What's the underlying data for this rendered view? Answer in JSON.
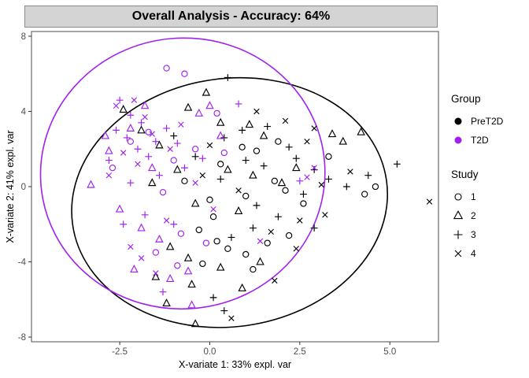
{
  "title": "Overall Analysis - Accuracy: 64%",
  "axes": {
    "x": {
      "label": "X-variate 1: 33% expl. var"
    },
    "y": {
      "label": "X-variate 2: 41% expl. var"
    }
  },
  "colors": {
    "PreT2D": "#000000",
    "T2D": "#A020F0"
  },
  "legend": {
    "group": {
      "title": "Group",
      "items": [
        {
          "label": "PreT2D",
          "color": "#000000"
        },
        {
          "label": "T2D",
          "color": "#A020F0"
        }
      ]
    },
    "study": {
      "title": "Study",
      "items": [
        {
          "label": "1",
          "shape": "circle"
        },
        {
          "label": "2",
          "shape": "triangle"
        },
        {
          "label": "3",
          "shape": "plus"
        },
        {
          "label": "4",
          "shape": "x"
        }
      ]
    }
  },
  "chart_data": {
    "type": "scatter",
    "title": "Overall Analysis - Accuracy: 64%",
    "xlabel": "X-variate 1: 33% expl. var",
    "ylabel": "X-variate 2: 41% expl. var",
    "xlim": [
      -4.95,
      6.35
    ],
    "ylim": [
      -8.25,
      8.25
    ],
    "x_ticks": [
      {
        "v": -2.5,
        "label": "-2.5"
      },
      {
        "v": 0,
        "label": "0.0"
      },
      {
        "v": 2.5,
        "label": "2.5"
      },
      {
        "v": 5,
        "label": "5.0"
      }
    ],
    "y_ticks": [
      {
        "v": -8,
        "label": "-8"
      },
      {
        "v": -4,
        "label": "-4"
      },
      {
        "v": 0,
        "label": "0"
      },
      {
        "v": 4,
        "label": "4"
      },
      {
        "v": 8,
        "label": "8"
      }
    ],
    "grid": false,
    "legend_position": "right",
    "shape_map": {
      "1": "circle",
      "2": "triangle",
      "3": "plus",
      "4": "x"
    },
    "ellipses": [
      {
        "group": "PreT2D",
        "cx": 0.55,
        "cy": -0.85,
        "rx": 4.4,
        "ry": 6.6,
        "angle": -8
      },
      {
        "group": "T2D",
        "cx": -0.75,
        "cy": 0.7,
        "rx": 3.95,
        "ry": 7.2,
        "angle": -5
      }
    ],
    "series": [
      {
        "group": "PreT2D",
        "study": 1,
        "shape": "circle",
        "points": [
          [
            0.9,
            2.1
          ],
          [
            1.3,
            1.9
          ],
          [
            0.3,
            1.2
          ],
          [
            1.8,
            0.3
          ],
          [
            2.1,
            -0.2
          ],
          [
            4.6,
            0.0
          ],
          [
            4.3,
            -0.4
          ],
          [
            1.0,
            -0.5
          ],
          [
            0.1,
            -1.6
          ],
          [
            -0.3,
            -2.3
          ],
          [
            0.5,
            -3.3
          ],
          [
            1.0,
            -3.6
          ],
          [
            -0.2,
            -4.1
          ],
          [
            1.6,
            -3.0
          ],
          [
            2.2,
            -2.6
          ],
          [
            -0.7,
            0.3
          ],
          [
            3.3,
            1.6
          ],
          [
            1.9,
            2.4
          ],
          [
            0.0,
            -0.7
          ],
          [
            2.6,
            -0.9
          ],
          [
            1.2,
            -4.4
          ],
          [
            0.2,
            -2.9
          ]
        ]
      },
      {
        "group": "PreT2D",
        "study": 2,
        "shape": "triangle",
        "points": [
          [
            -2.4,
            4.1
          ],
          [
            -1.9,
            3.0
          ],
          [
            -1.4,
            2.2
          ],
          [
            -0.6,
            4.2
          ],
          [
            0.3,
            3.4
          ],
          [
            1.1,
            3.3
          ],
          [
            1.5,
            2.7
          ],
          [
            3.4,
            2.8
          ],
          [
            3.7,
            2.4
          ],
          [
            4.2,
            2.9
          ],
          [
            0.5,
            0.9
          ],
          [
            1.2,
            0.6
          ],
          [
            -0.9,
            0.9
          ],
          [
            -1.6,
            0.2
          ],
          [
            -0.4,
            -0.9
          ],
          [
            0.8,
            -1.3
          ],
          [
            -1.1,
            -3.2
          ],
          [
            -0.6,
            -3.8
          ],
          [
            0.3,
            -4.3
          ],
          [
            1.4,
            -4.0
          ],
          [
            -1.5,
            -4.8
          ],
          [
            -0.5,
            -5.2
          ],
          [
            0.9,
            -5.4
          ],
          [
            -1.2,
            -6.2
          ],
          [
            -0.4,
            -7.3
          ],
          [
            2.0,
            0.2
          ],
          [
            2.4,
            1.0
          ],
          [
            -0.1,
            5.0
          ]
        ]
      },
      {
        "group": "PreT2D",
        "study": 3,
        "shape": "plus",
        "points": [
          [
            0.5,
            5.8
          ],
          [
            1.6,
            3.2
          ],
          [
            0.9,
            3.0
          ],
          [
            0.4,
            2.6
          ],
          [
            1.0,
            1.4
          ],
          [
            1.5,
            1.1
          ],
          [
            2.4,
            1.5
          ],
          [
            2.9,
            0.9
          ],
          [
            3.3,
            0.4
          ],
          [
            3.8,
            0.0
          ],
          [
            2.6,
            -0.4
          ],
          [
            5.2,
            1.2
          ],
          [
            0.3,
            0.4
          ],
          [
            -0.4,
            1.6
          ],
          [
            -1.0,
            2.7
          ],
          [
            1.9,
            -1.6
          ],
          [
            1.2,
            -2.2
          ],
          [
            0.6,
            -2.7
          ],
          [
            2.9,
            -2.2
          ],
          [
            0.1,
            -5.9
          ],
          [
            0.4,
            -6.6
          ],
          [
            1.3,
            -1.0
          ],
          [
            2.2,
            2.1
          ],
          [
            4.4,
            0.6
          ]
        ]
      },
      {
        "group": "PreT2D",
        "study": 4,
        "shape": "x",
        "points": [
          [
            2.1,
            3.5
          ],
          [
            2.7,
            2.4
          ],
          [
            3.9,
            0.8
          ],
          [
            6.1,
            -0.8
          ],
          [
            3.2,
            -1.5
          ],
          [
            2.4,
            -3.3
          ],
          [
            1.7,
            -2.4
          ],
          [
            0.8,
            -0.2
          ],
          [
            -0.2,
            0.6
          ],
          [
            1.3,
            4.0
          ],
          [
            2.9,
            3.1
          ],
          [
            0.6,
            -7.0
          ],
          [
            1.8,
            -5.0
          ],
          [
            3.1,
            0.1
          ],
          [
            0.0,
            2.2
          ],
          [
            2.5,
            -1.8
          ]
        ]
      },
      {
        "group": "T2D",
        "study": 1,
        "shape": "circle",
        "points": [
          [
            -1.2,
            6.3
          ],
          [
            -0.7,
            6.0
          ],
          [
            -1.7,
            2.9
          ],
          [
            -2.2,
            2.4
          ],
          [
            -1.0,
            1.4
          ],
          [
            -0.4,
            2.0
          ],
          [
            -1.3,
            -0.3
          ],
          [
            -0.8,
            -2.5
          ],
          [
            -1.5,
            -3.5
          ],
          [
            -0.9,
            -4.2
          ],
          [
            0.2,
            3.9
          ],
          [
            -2.7,
            1.0
          ],
          [
            0.4,
            1.8
          ],
          [
            -0.1,
            -3.0
          ]
        ]
      },
      {
        "group": "T2D",
        "study": 2,
        "shape": "triangle",
        "points": [
          [
            -3.3,
            0.1
          ],
          [
            -2.8,
            1.9
          ],
          [
            -2.2,
            3.1
          ],
          [
            -1.8,
            4.3
          ],
          [
            -0.3,
            3.9
          ],
          [
            0.0,
            4.3
          ],
          [
            -2.5,
            -1.2
          ],
          [
            -1.9,
            -2.2
          ],
          [
            -1.4,
            -2.8
          ],
          [
            -2.1,
            -4.4
          ],
          [
            -1.1,
            -4.9
          ],
          [
            -0.6,
            -4.5
          ],
          [
            -2.9,
            2.7
          ],
          [
            0.3,
            2.7
          ],
          [
            -1.6,
            1.0
          ],
          [
            -0.5,
            -6.3
          ]
        ]
      },
      {
        "group": "T2D",
        "study": 3,
        "shape": "plus",
        "points": [
          [
            -2.5,
            4.6
          ],
          [
            -2.2,
            3.8
          ],
          [
            -1.9,
            3.4
          ],
          [
            -2.6,
            3.0
          ],
          [
            -2.3,
            2.6
          ],
          [
            -2.0,
            2.0
          ],
          [
            -1.7,
            1.6
          ],
          [
            -2.8,
            1.4
          ],
          [
            -1.5,
            2.4
          ],
          [
            -1.2,
            3.1
          ],
          [
            -0.9,
            2.3
          ],
          [
            -1.4,
            0.6
          ],
          [
            -2.2,
            0.2
          ],
          [
            -0.7,
            1.0
          ],
          [
            2.5,
            0.3
          ],
          [
            -1.8,
            -1.5
          ],
          [
            -2.4,
            -2.0
          ],
          [
            -1.3,
            -5.6
          ],
          [
            -1.0,
            -2.0
          ],
          [
            0.8,
            4.4
          ],
          [
            -0.2,
            1.5
          ]
        ]
      },
      {
        "group": "T2D",
        "study": 4,
        "shape": "x",
        "points": [
          [
            -2.6,
            4.3
          ],
          [
            -2.1,
            4.6
          ],
          [
            -1.8,
            3.7
          ],
          [
            -2.4,
            1.8
          ],
          [
            -2.0,
            1.2
          ],
          [
            -1.6,
            2.8
          ],
          [
            -1.1,
            2.0
          ],
          [
            -0.8,
            3.3
          ],
          [
            -2.8,
            0.6
          ],
          [
            -1.9,
            -3.8
          ],
          [
            -1.5,
            -4.6
          ],
          [
            -2.2,
            -3.2
          ],
          [
            2.9,
            1.0
          ],
          [
            1.4,
            -2.9
          ],
          [
            -0.4,
            0.2
          ],
          [
            0.1,
            -1.2
          ],
          [
            -1.2,
            -1.8
          ],
          [
            2.7,
            0.5
          ]
        ]
      }
    ]
  }
}
